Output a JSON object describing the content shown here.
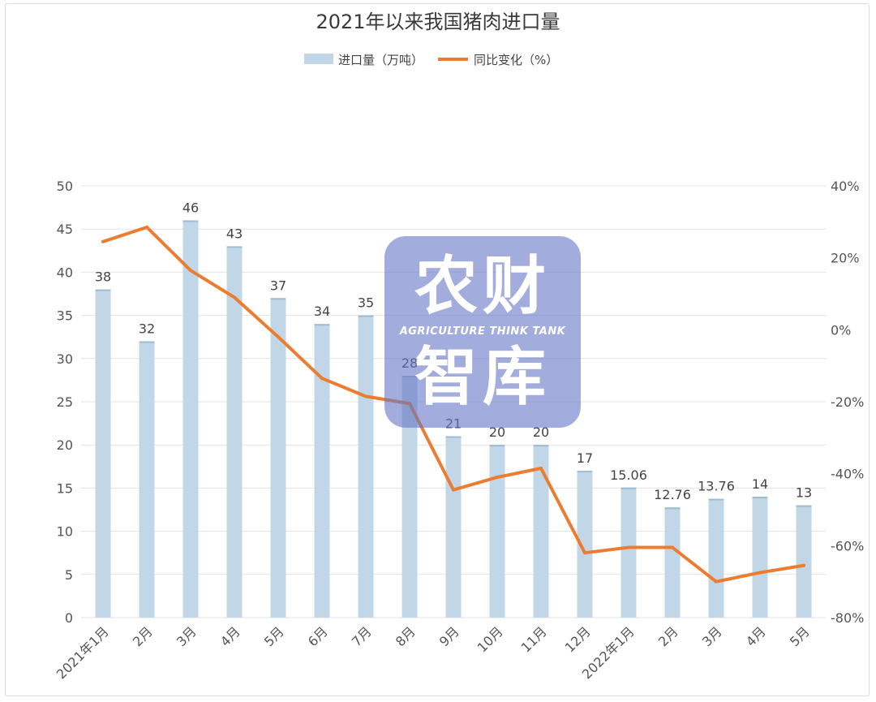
{
  "chart_data": {
    "type": "bar+line",
    "title": "2021年以来我国猪肉进口量",
    "legend": {
      "placement": "top-center",
      "items": [
        {
          "name": "进口量（万吨）",
          "kind": "bar",
          "color": "#c1d6e6"
        },
        {
          "name": "同比变化（%）",
          "kind": "line",
          "color": "#ec7d30"
        }
      ]
    },
    "categories": [
      "2021年1月",
      "2月",
      "3月",
      "4月",
      "5月",
      "6月",
      "7月",
      "8月",
      "9月",
      "10月",
      "11月",
      "12月",
      "2022年1月",
      "2月",
      "3月",
      "4月",
      "5月"
    ],
    "series": [
      {
        "name": "进口量（万吨）",
        "type": "bar",
        "axis": "left",
        "color": "#c1d6e6",
        "values": [
          38,
          32,
          46,
          43,
          37,
          34,
          35,
          28,
          21,
          20,
          20,
          17,
          15.06,
          12.76,
          13.76,
          14,
          13
        ],
        "labels": [
          "38",
          "32",
          "46",
          "43",
          "37",
          "34",
          "35",
          "28",
          "21",
          "20",
          "20",
          "17",
          "15.06",
          "12.76",
          "13.76",
          "14",
          "13"
        ]
      },
      {
        "name": "同比变化（%）",
        "type": "line",
        "axis": "right",
        "color": "#ec7d30",
        "values": [
          24.5,
          28.5,
          16.5,
          9,
          -2,
          -13.5,
          -18.5,
          -20.5,
          -44.5,
          -41,
          -38.5,
          -62,
          -60.5,
          -60.5,
          -70,
          -67.5,
          -65.5
        ]
      }
    ],
    "y_left": {
      "min": 0,
      "max": 50,
      "step": 5,
      "ticks": [
        "0",
        "5",
        "10",
        "15",
        "20",
        "25",
        "30",
        "35",
        "40",
        "45",
        "50"
      ]
    },
    "y_right": {
      "min": -80,
      "max": 40,
      "step": 20,
      "ticks": [
        "-80%",
        "-60%",
        "-40%",
        "-20%",
        "0%",
        "20%",
        "40%"
      ]
    },
    "grid": true
  },
  "watermark": {
    "line1": "农财",
    "line2": "AGRICULTURE  THINK TANK",
    "line3": "智库"
  }
}
